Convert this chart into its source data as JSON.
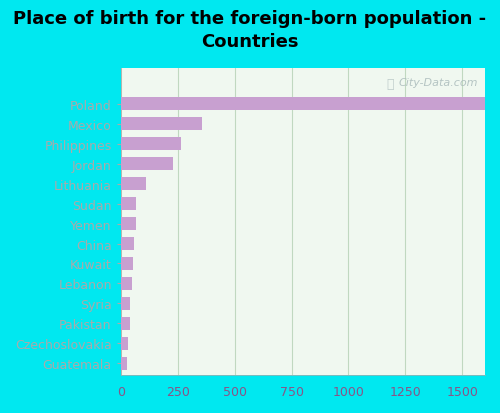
{
  "title": "Place of birth for the foreign-born population -\nCountries",
  "categories": [
    "Guatemala",
    "Czechoslovakia",
    "Pakistan",
    "Syria",
    "Lebanon",
    "Kuwait",
    "China",
    "Yemen",
    "Sudan",
    "Lithuania",
    "Jordan",
    "Philippines",
    "Mexico",
    "Poland"
  ],
  "values": [
    28,
    32,
    40,
    42,
    50,
    55,
    60,
    65,
    68,
    110,
    230,
    265,
    355,
    1650
  ],
  "bar_color": "#c8a0d0",
  "background_outer": "#00e8f0",
  "background_inner_top": "#f0f8f0",
  "background_inner_bottom": "#d8edd8",
  "grid_color": "#c0d8c0",
  "text_color": "#000000",
  "label_color": "#885588",
  "title_fontsize": 13,
  "tick_fontsize": 9,
  "xlim": [
    0,
    1600
  ],
  "xticks": [
    0,
    250,
    500,
    750,
    1000,
    1250,
    1500
  ],
  "watermark": "City-Data.com"
}
